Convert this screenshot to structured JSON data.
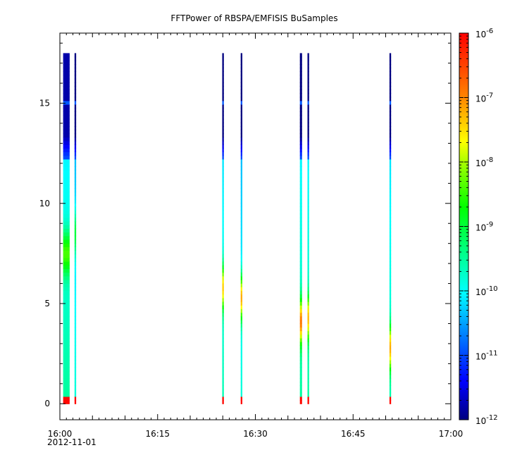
{
  "chart_data": {
    "type": "heatmap",
    "title": "FFTPower of RBSPA/EMFISIS  BuSamples",
    "xlabel": "",
    "ylabel": "",
    "date_label": "2012-11-01",
    "x_axis": {
      "range": [
        "16:00",
        "17:00"
      ],
      "tick_labels": [
        "16:00",
        "16:15",
        "16:30",
        "16:45",
        "17:00"
      ],
      "tick_minutes": [
        0,
        15,
        30,
        45,
        60
      ]
    },
    "y_axis": {
      "range": [
        -0.8,
        18.5
      ],
      "tick_labels": [
        "0",
        "5",
        "10",
        "15"
      ],
      "tick_values": [
        0,
        5,
        10,
        15
      ]
    },
    "colorbar": {
      "scale": "log",
      "range": [
        1e-12,
        1e-06
      ],
      "tick_labels": [
        {
          "base": "10",
          "exp": "-12",
          "value": 1e-12
        },
        {
          "base": "10",
          "exp": "-11",
          "value": 1e-11
        },
        {
          "base": "10",
          "exp": "-10",
          "value": 1e-10
        },
        {
          "base": "10",
          "exp": "-9",
          "value": 1e-09
        },
        {
          "base": "10",
          "exp": "-8",
          "value": 1e-08
        },
        {
          "base": "10",
          "exp": "-7",
          "value": 1e-07
        },
        {
          "base": "10",
          "exp": "-6",
          "value": 1e-06
        }
      ]
    },
    "data_ymax": 17.5,
    "bursts": [
      {
        "start": "16:00:30",
        "end": "16:01:30",
        "cyan_top": 12.2,
        "low_level": -9.5,
        "blob_y": 7.5,
        "blob_level": -8.4,
        "top_level": -11.8
      },
      {
        "start": "16:02:15",
        "end": "16:02:30",
        "cyan_top": 12.2,
        "low_level": -9.8,
        "blob_y": 8.5,
        "blob_level": -9.0,
        "top_level": -12.0
      },
      {
        "start": "16:24:55",
        "end": "16:25:10",
        "cyan_top": 12.2,
        "low_level": -9.6,
        "blob_y": 5.8,
        "blob_level": -7.4,
        "top_level": -12.0
      },
      {
        "start": "16:27:45",
        "end": "16:28:00",
        "cyan_top": 12.2,
        "low_level": -9.8,
        "blob_y": 5.3,
        "blob_level": -7.2,
        "top_level": -12.0
      },
      {
        "start": "16:36:50",
        "end": "16:37:10",
        "cyan_top": 12.2,
        "low_level": -9.5,
        "blob_y": 4.1,
        "blob_level": -6.9,
        "top_level": -12.0
      },
      {
        "start": "16:38:00",
        "end": "16:38:15",
        "cyan_top": 12.2,
        "low_level": -9.5,
        "blob_y": 4.3,
        "blob_level": -7.3,
        "top_level": -12.0
      },
      {
        "start": "16:50:35",
        "end": "16:50:50",
        "cyan_top": 12.2,
        "low_level": -9.6,
        "blob_y": 2.8,
        "blob_level": -7.2,
        "top_level": -12.0
      }
    ]
  }
}
